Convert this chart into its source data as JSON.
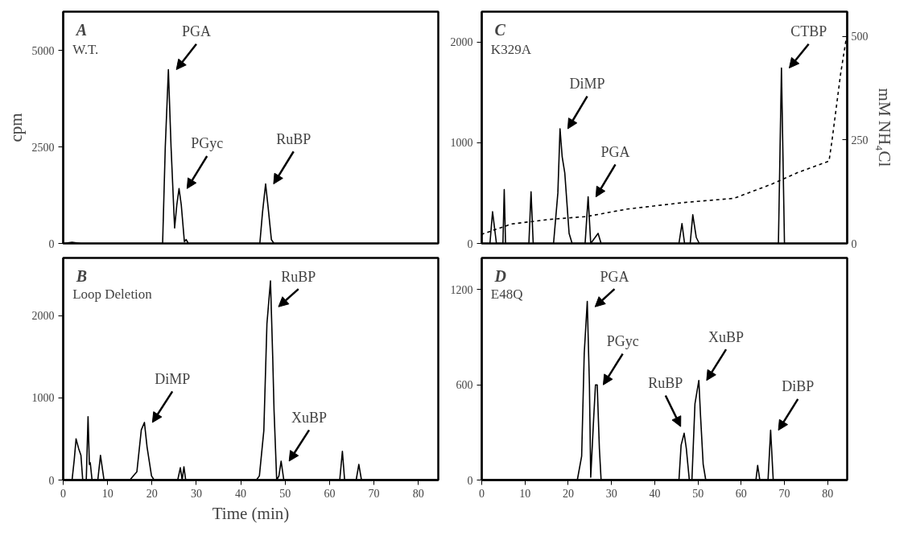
{
  "chart_data": [
    {
      "type": "line",
      "title": "A",
      "subtitle": "W.T.",
      "ylabel": "cpm",
      "xlim": [
        0,
        84.5
      ],
      "ylim": [
        0,
        6000
      ],
      "yticks": [
        0,
        2500,
        5000
      ],
      "tick_labels": "y",
      "grid": false,
      "marker": "none",
      "series": [
        {
          "color": "#000000",
          "line_style": "solid",
          "x": [
            0,
            2,
            4,
            10,
            20,
            22.4,
            23,
            23.7,
            24.3,
            25.1,
            25.6,
            26.1,
            26.6,
            27.3,
            27.7,
            28.2,
            35,
            44.3,
            44.9,
            45.6,
            46.2,
            46.9,
            47.5,
            55,
            70,
            84
          ],
          "values": [
            0,
            30,
            0,
            0,
            0,
            0,
            2500,
            4500,
            2500,
            400,
            1000,
            1420,
            1000,
            50,
            100,
            0,
            0,
            0,
            800,
            1540,
            900,
            100,
            0,
            0,
            0,
            0
          ]
        }
      ],
      "annotations": [
        {
          "text": "PGA",
          "x": 23.7,
          "y": 4500
        },
        {
          "text": "PGyc",
          "x": 26.1,
          "y": 1420
        },
        {
          "text": "RuBP",
          "x": 45.6,
          "y": 1540
        }
      ]
    },
    {
      "type": "line",
      "title": "B",
      "subtitle": "Loop Deletion",
      "xlabel": "Time (min)",
      "xlim": [
        0,
        84.5
      ],
      "xticks": [
        0,
        10,
        20,
        30,
        40,
        50,
        60,
        70,
        80
      ],
      "ylim": [
        0,
        2700
      ],
      "yticks": [
        0,
        1000,
        2000
      ],
      "grid": false,
      "marker": "none",
      "series": [
        {
          "color": "#000000",
          "line_style": "solid",
          "x": [
            0,
            2,
            2.5,
            2.9,
            3.5,
            4.0,
            4.4,
            5.2,
            5.6,
            5.9,
            6.1,
            6.5,
            7.8,
            8.4,
            9.2,
            15,
            16.6,
            17.6,
            18.3,
            18.9,
            19.9,
            20.5,
            25.8,
            26.4,
            26.8,
            27.2,
            27.6,
            43.5,
            44.2,
            45.2,
            45.9,
            46.7,
            47.2,
            47.5,
            48.1,
            48.6,
            49.1,
            49.7,
            62.3,
            62.9,
            63.4,
            66,
            66.6,
            67.2,
            84
          ],
          "values": [
            0,
            0,
            250,
            500,
            380,
            300,
            0,
            0,
            770,
            190,
            210,
            0,
            0,
            300,
            0,
            0,
            100,
            610,
            700,
            400,
            50,
            0,
            0,
            150,
            0,
            160,
            0,
            0,
            50,
            600,
            1900,
            2420,
            1500,
            850,
            0,
            50,
            230,
            0,
            0,
            350,
            0,
            0,
            190,
            0,
            0
          ]
        }
      ],
      "annotations": [
        {
          "text": "DiMP",
          "x": 18.3,
          "y": 700
        },
        {
          "text": "RuBP",
          "x": 46.7,
          "y": 2420
        },
        {
          "text": "XuBP",
          "x": 49.1,
          "y": 230
        }
      ]
    },
    {
      "type": "line",
      "title": "C",
      "subtitle": "K329A",
      "y2label": "mM NH₄Cl",
      "xlim": [
        0,
        84.5
      ],
      "ylim": [
        0,
        2300
      ],
      "yticks": [
        0,
        1000,
        2000
      ],
      "y2lim": [
        0,
        560
      ],
      "y2ticks": [
        0,
        250,
        500
      ],
      "tick_labels": "y",
      "grid": false,
      "marker": "none",
      "series": [
        {
          "color": "#000000",
          "line_style": "solid",
          "x": [
            0,
            1.9,
            2.5,
            3.4,
            4.9,
            5.2,
            5.5,
            10.9,
            11.4,
            11.9,
            16.6,
            17.6,
            18.1,
            18.6,
            19.2,
            20.2,
            20.9,
            23.9,
            24.6,
            25.2,
            26.9,
            27.6,
            45.6,
            46.3,
            46.9,
            48.2,
            48.8,
            49.6,
            50.3,
            68.6,
            69.3,
            70.0,
            84
          ],
          "values": [
            0,
            0,
            315,
            0,
            0,
            535,
            0,
            0,
            512,
            0,
            0,
            500,
            1138,
            859,
            700,
            100,
            0,
            0,
            462,
            0,
            100,
            0,
            0,
            197,
            0,
            0,
            285,
            60,
            0,
            0,
            1741,
            0,
            0
          ]
        },
        {
          "color": "#000000",
          "line_style": "dashed",
          "axis": "y2",
          "x": [
            0,
            0.2,
            6.9,
            15.6,
            24.2,
            33.6,
            46.9,
            58.3,
            67,
            73,
            80.3,
            81,
            83,
            84.3
          ],
          "values": [
            20,
            23,
            47,
            58,
            65,
            83,
            99,
            109,
            143,
            171,
            199,
            249,
            411,
            496
          ]
        }
      ],
      "annotations": [
        {
          "text": "DiMP",
          "x": 18.1,
          "y": 1138
        },
        {
          "text": "PGA",
          "x": 24.6,
          "y": 462
        },
        {
          "text": "CTBP",
          "x": 69.3,
          "y": 1741
        }
      ]
    },
    {
      "type": "line",
      "title": "D",
      "subtitle": "E48Q",
      "xlim": [
        0,
        84.5
      ],
      "xticks": [
        0,
        10,
        20,
        30,
        40,
        50,
        60,
        70,
        80
      ],
      "ylim": [
        0,
        1400
      ],
      "yticks": [
        0,
        600,
        1200
      ],
      "grid": false,
      "marker": "none",
      "series": [
        {
          "color": "#000000",
          "line_style": "solid",
          "x": [
            0,
            22.1,
            23.1,
            23.7,
            24.4,
            24.9,
            25.2,
            25.9,
            26.3,
            26.7,
            27.2,
            27.6,
            45.6,
            46.1,
            46.8,
            47.3,
            48,
            48.6,
            49.3,
            50.2,
            50.6,
            51.2,
            51.8,
            63.4,
            63.8,
            64.3,
            66.2,
            66.8,
            67.4,
            84
          ],
          "values": [
            0,
            0,
            150,
            800,
            1126,
            600,
            18,
            400,
            600,
            600,
            200,
            0,
            0,
            220,
            295,
            200,
            0,
            0,
            480,
            628,
            400,
            100,
            0,
            0,
            92,
            0,
            0,
            314,
            0,
            0
          ]
        }
      ],
      "annotations": [
        {
          "text": "PGA",
          "x": 24.4,
          "y": 1126
        },
        {
          "text": "PGyc",
          "x": 26.3,
          "y": 600
        },
        {
          "text": "RuBP",
          "x": 46.8,
          "y": 295
        },
        {
          "text": "XuBP",
          "x": 50.2,
          "y": 628
        },
        {
          "text": "DiBP",
          "x": 66.8,
          "y": 314
        }
      ]
    }
  ]
}
